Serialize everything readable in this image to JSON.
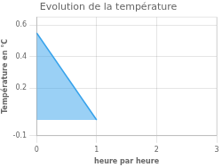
{
  "chart_data": {
    "type": "area",
    "title": "Evolution de la température",
    "xlabel": "heure par heure",
    "ylabel": "Température en °C",
    "x": [
      0,
      1
    ],
    "values": [
      0.55,
      0
    ],
    "xlim": [
      0,
      3
    ],
    "ylim": [
      -0.1,
      0.65
    ],
    "xticks": [
      0,
      1,
      2,
      3
    ],
    "yticks": [
      -0.1,
      0.2,
      0.4,
      0.6
    ],
    "grid": true
  }
}
